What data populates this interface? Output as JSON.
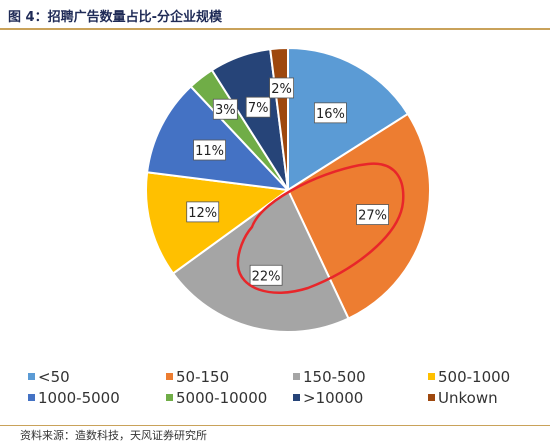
{
  "title": "图 4：招聘广告数量占比-分企业规模",
  "source": "资料来源：造数科技，天风证券研究所",
  "chart_data": {
    "type": "pie",
    "title": "图 4：招聘广告数量占比-分企业规模",
    "categories": [
      "<50",
      "50-150",
      "150-500",
      "500-1000",
      "1000-5000",
      "5000-10000",
      ">10000",
      "Unkown"
    ],
    "values": [
      16,
      27,
      22,
      12,
      11,
      3,
      7,
      2
    ],
    "labels": [
      "16%",
      "27%",
      "22%",
      "12%",
      "11%",
      "3%",
      "7%",
      "2%"
    ],
    "colors": [
      "#5b9bd5",
      "#ed7d31",
      "#a5a5a5",
      "#ffc000",
      "#4472c4",
      "#70ad47",
      "#264478",
      "#9e480e"
    ],
    "legend_position": "bottom",
    "annotation": {
      "shape": "hand-drawn ellipse",
      "color": "#e8262a",
      "around": [
        "50-150",
        "150-500"
      ]
    }
  }
}
